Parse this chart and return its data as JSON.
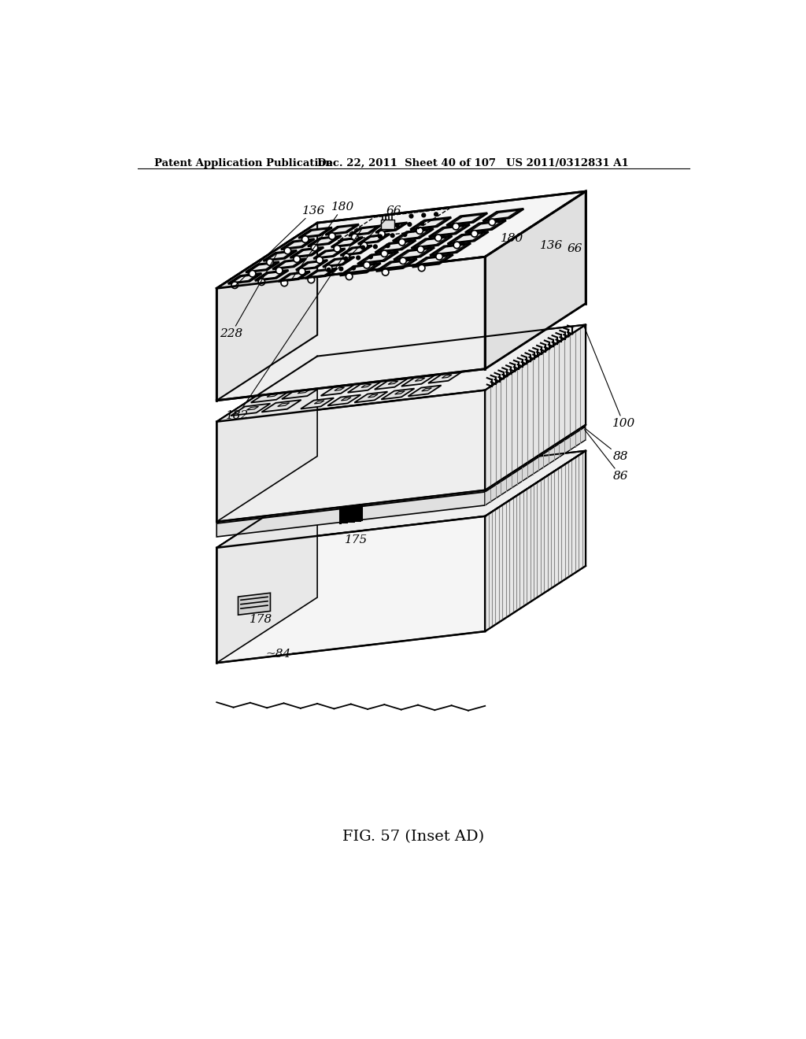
{
  "title": "FIG. 57 (Inset AD)",
  "header_left": "Patent Application Publication",
  "header_mid": "Dec. 22, 2011  Sheet 40 of 107",
  "header_right": "US 2011/0312831 A1",
  "bg": "#ffffff",
  "lc": "#000000",
  "gray_light": "#f2f2f2",
  "gray_mid": "#e0e0e0",
  "gray_dark": "#c8c8c8",
  "hatch_gray": "#999999"
}
